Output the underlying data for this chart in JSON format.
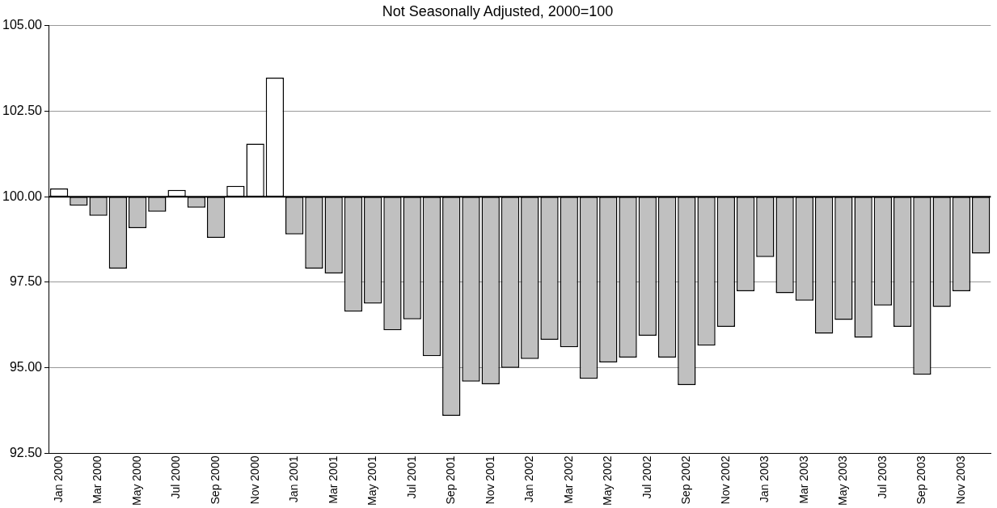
{
  "chart_data": {
    "type": "bar",
    "title": "Not Seasonally Adjusted, 2000=100",
    "categories": [
      "Jan 2000",
      null,
      "Mar 2000",
      null,
      "May 2000",
      null,
      "Jul 2000",
      null,
      "Sep 2000",
      null,
      "Nov 2000",
      null,
      "Jan 2001",
      null,
      "Mar 2001",
      null,
      "May 2001",
      null,
      "Jul 2001",
      null,
      "Sep 2001",
      null,
      "Nov 2001",
      null,
      "Jan 2002",
      null,
      "Mar 2002",
      null,
      "May 2002",
      null,
      "Jul 2002",
      null,
      "Sep 2002",
      null,
      "Nov 2002",
      null,
      "Jan 2003",
      null,
      "Mar 2003",
      null,
      "May 2003",
      null,
      "Jul 2003",
      null,
      "Sep 2003",
      null,
      "Nov 2003",
      null
    ],
    "base": [
      100,
      100,
      100,
      100,
      100,
      100,
      100,
      100,
      100,
      100,
      100,
      100,
      100,
      100,
      100,
      100,
      100,
      100,
      100,
      100,
      100,
      100,
      100,
      100,
      100,
      100,
      100,
      100,
      100,
      100,
      100,
      100,
      100,
      100,
      100,
      100,
      100,
      100,
      100,
      100,
      100,
      100,
      100,
      100,
      100,
      100,
      100,
      100
    ],
    "values": [
      0.24,
      -0.26,
      -0.56,
      -2.1,
      -0.92,
      -0.44,
      0.2,
      -0.32,
      -1.2,
      0.32,
      1.55,
      3.48,
      -1.1,
      -2.1,
      -2.24,
      -3.36,
      -3.12,
      -3.9,
      -3.58,
      -4.66,
      -6.4,
      -5.4,
      -5.48,
      -5.0,
      -4.74,
      -4.18,
      -4.4,
      -5.32,
      -4.84,
      -4.7,
      -4.06,
      -4.7,
      -5.5,
      -4.35,
      -3.8,
      -2.76,
      -1.76,
      -2.82,
      -3.04,
      -4.0,
      -3.6,
      -4.12,
      -3.18,
      -3.8,
      -5.2,
      -3.22,
      -2.76,
      -1.66
    ],
    "colors": [
      "#ffffff",
      "#c0c0c0",
      "#c0c0c0",
      "#c0c0c0",
      "#c0c0c0",
      "#c0c0c0",
      "#ffffff",
      "#c0c0c0",
      "#c0c0c0",
      "#ffffff",
      "#ffffff",
      "#ffffff",
      "#c0c0c0",
      "#c0c0c0",
      "#c0c0c0",
      "#c0c0c0",
      "#c0c0c0",
      "#c0c0c0",
      "#c0c0c0",
      "#c0c0c0",
      "#c0c0c0",
      "#c0c0c0",
      "#c0c0c0",
      "#c0c0c0",
      "#c0c0c0",
      "#c0c0c0",
      "#c0c0c0",
      "#c0c0c0",
      "#c0c0c0",
      "#c0c0c0",
      "#c0c0c0",
      "#c0c0c0",
      "#c0c0c0",
      "#c0c0c0",
      "#c0c0c0",
      "#c0c0c0",
      "#c0c0c0",
      "#c0c0c0",
      "#c0c0c0",
      "#c0c0c0",
      "#c0c0c0",
      "#c0c0c0",
      "#c0c0c0",
      "#c0c0c0",
      "#c0c0c0",
      "#c0c0c0",
      "#c0c0c0",
      "#c0c0c0"
    ],
    "ylim": [
      92.5,
      105
    ],
    "yticks": [
      {
        "value": 92.5,
        "label": "92.50"
      },
      {
        "value": 95,
        "label": "95.00"
      },
      {
        "value": 97.5,
        "label": "97.50"
      },
      {
        "value": 100,
        "label": "100.00"
      },
      {
        "value": 102.5,
        "label": "102.50"
      },
      {
        "value": 105,
        "label": "105.00"
      }
    ],
    "ref_lines": [
      {
        "axis": "y",
        "value": 100,
        "color": "#000000"
      }
    ],
    "grid": "y",
    "legend": false
  }
}
